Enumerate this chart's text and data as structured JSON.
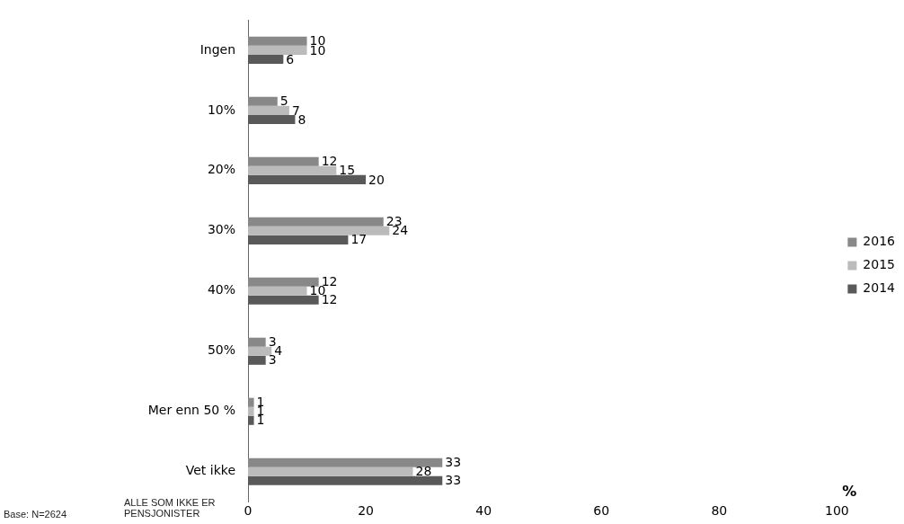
{
  "chart_data": {
    "type": "bar",
    "orientation": "horizontal",
    "categories": [
      "Ingen",
      "10%",
      "20%",
      "30%",
      "40%",
      "50%",
      "Mer enn 50 %",
      "Vet ikke"
    ],
    "series": [
      {
        "name": "2016",
        "color": "#888888",
        "values": [
          10,
          5,
          12,
          23,
          12,
          3,
          1,
          33
        ]
      },
      {
        "name": "2015",
        "color": "#bbbbbb",
        "values": [
          10,
          7,
          15,
          24,
          10,
          4,
          1,
          28
        ]
      },
      {
        "name": "2014",
        "color": "#595959",
        "values": [
          6,
          8,
          20,
          17,
          12,
          3,
          1,
          33
        ]
      }
    ],
    "xlim": [
      0,
      100
    ],
    "xticks": [
      0,
      20,
      40,
      60,
      80,
      100
    ],
    "xlabel": "%",
    "grid": false,
    "legend": "right",
    "data_labels": true,
    "annotations": [
      "Base: N=2624",
      "ALLE SOM IKKE ER PENSJONISTER"
    ]
  }
}
